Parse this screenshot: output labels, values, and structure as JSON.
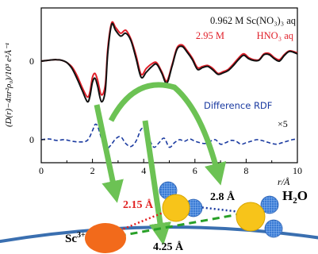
{
  "chart_data": {
    "type": "line",
    "xlabel": "r/Å",
    "ylabel": "(D(r)−4πr²ρ₀)/10³ e²Å⁻¹",
    "xlim": [
      0,
      10
    ],
    "xticks": [
      "0",
      "2",
      "4",
      "6",
      "8",
      "10"
    ],
    "yticks": [
      "0",
      "0"
    ],
    "grid": false,
    "legend_position": "top-right",
    "legend": [
      {
        "text": "0.962 M Sc(NO₃)₃ aq",
        "color": "#111111"
      },
      {
        "text_left": "2.95 M",
        "text_right": "HNO₃ aq",
        "color": "#e0202a"
      }
    ],
    "difference_label": "Difference RDF",
    "difference_scale": "×5",
    "series": [
      {
        "name": "0.962 M Sc(NO₃)₃ aq",
        "color": "#111111",
        "x": [
          0.0,
          0.2,
          0.4,
          0.6,
          0.8,
          1.0,
          1.2,
          1.4,
          1.6,
          1.8,
          1.9,
          2.0,
          2.1,
          2.2,
          2.35,
          2.5,
          2.6,
          2.75,
          2.9,
          3.1,
          3.3,
          3.5,
          3.7,
          3.9,
          4.1,
          4.3,
          4.5,
          4.7,
          4.9,
          5.1,
          5.3,
          5.5,
          5.7,
          5.9,
          6.1,
          6.3,
          6.5,
          6.7,
          6.9,
          7.1,
          7.3,
          7.5,
          7.7,
          7.9,
          8.1,
          8.3,
          8.5,
          8.7,
          8.9,
          9.1,
          9.3,
          9.5,
          9.7,
          10.0
        ],
        "y": [
          0.0,
          0.02,
          0.04,
          0.05,
          0.03,
          -0.05,
          -0.25,
          -0.6,
          -1.0,
          -1.38,
          -1.2,
          -0.72,
          -0.58,
          -0.85,
          -1.38,
          -1.0,
          0.3,
          1.25,
          1.05,
          0.85,
          0.95,
          0.7,
          0.1,
          -0.55,
          -0.38,
          -0.2,
          -0.1,
          -0.4,
          -0.75,
          -0.2,
          0.4,
          0.5,
          0.3,
          0.05,
          -0.28,
          -0.22,
          -0.18,
          -0.3,
          -0.45,
          -0.4,
          -0.32,
          -0.15,
          0.05,
          0.2,
          0.08,
          0.02,
          0.03,
          0.22,
          0.22,
          0.08,
          0.0,
          0.2,
          0.33,
          0.25
        ]
      },
      {
        "name": "2.95 M HNO₃ aq",
        "color": "#e0202a",
        "x": [
          0.0,
          0.2,
          0.4,
          0.6,
          0.8,
          1.0,
          1.2,
          1.4,
          1.6,
          1.8,
          1.9,
          2.0,
          2.1,
          2.2,
          2.35,
          2.5,
          2.6,
          2.75,
          2.9,
          3.1,
          3.3,
          3.5,
          3.7,
          3.9,
          4.1,
          4.3,
          4.5,
          4.7,
          4.9,
          5.1,
          5.3,
          5.5,
          5.7,
          5.9,
          6.1,
          6.3,
          6.5,
          6.7,
          6.9,
          7.1,
          7.3,
          7.5,
          7.7,
          7.9,
          8.1,
          8.3,
          8.5,
          8.7,
          8.9,
          9.1,
          9.3,
          9.5,
          9.7,
          10.0
        ],
        "y": [
          0.0,
          0.02,
          0.04,
          0.05,
          0.03,
          -0.05,
          -0.2,
          -0.5,
          -0.9,
          -1.22,
          -1.05,
          -0.55,
          -0.42,
          -0.65,
          -1.15,
          -0.8,
          0.45,
          1.3,
          1.15,
          0.95,
          1.05,
          0.75,
          0.2,
          -0.45,
          -0.25,
          -0.1,
          -0.05,
          -0.35,
          -0.68,
          -0.15,
          0.45,
          0.55,
          0.35,
          0.1,
          -0.22,
          -0.18,
          -0.15,
          -0.25,
          -0.42,
          -0.36,
          -0.28,
          -0.1,
          0.1,
          0.25,
          0.12,
          0.05,
          0.05,
          0.25,
          0.26,
          0.12,
          0.05,
          0.23,
          0.35,
          0.28
        ]
      },
      {
        "name": "Difference RDF",
        "color": "#1a3aa0",
        "dashed": true,
        "x": [
          0.0,
          0.3,
          0.6,
          0.9,
          1.2,
          1.5,
          1.8,
          2.0,
          2.1,
          2.2,
          2.35,
          2.5,
          2.7,
          2.9,
          3.1,
          3.3,
          3.5,
          3.7,
          3.9,
          4.05,
          4.2,
          4.4,
          4.6,
          4.8,
          5.0,
          5.2,
          5.4,
          5.6,
          5.8,
          6.0,
          6.2,
          6.4,
          6.6,
          6.8,
          7.0,
          7.2,
          7.4,
          7.6,
          7.8,
          8.0,
          8.2,
          8.4,
          8.6,
          8.8,
          9.0,
          9.2,
          9.4,
          9.6,
          9.8,
          10.0
        ],
        "y": [
          0.0,
          0.05,
          -0.05,
          0.0,
          -0.1,
          -0.15,
          -0.05,
          0.6,
          1.0,
          0.9,
          0.1,
          -0.6,
          -0.4,
          0.05,
          0.2,
          -0.25,
          -0.45,
          -0.1,
          0.7,
          0.65,
          0.1,
          -0.5,
          -0.2,
          0.1,
          -0.5,
          -0.2,
          0.0,
          -0.1,
          0.05,
          -0.1,
          -0.2,
          -0.25,
          -0.1,
          0.0,
          -0.3,
          -0.2,
          -0.05,
          -0.1,
          -0.3,
          -0.2,
          -0.1,
          0.0,
          -0.05,
          -0.15,
          -0.25,
          -0.3,
          -0.2,
          -0.1,
          0.0,
          0.05
        ]
      }
    ]
  },
  "diagram": {
    "ion_label": "Sc",
    "ion_charge": "3+",
    "distance_1": "2.15 Å",
    "distance_2": "2.8 Å",
    "distance_3": "4.25 Å",
    "molecule_label": "H",
    "molecule_sub": "2",
    "molecule_end": "O",
    "colors": {
      "ion": "#f26a1b",
      "oxygen": "#f7c41a",
      "hydrogen": "#3a7bd5",
      "arrow": "#6cc254",
      "dash_green": "#28a028",
      "dot_red": "#e02020",
      "dot_blue": "#1a3aa0",
      "frame_blue": "#3a6fb0"
    }
  }
}
